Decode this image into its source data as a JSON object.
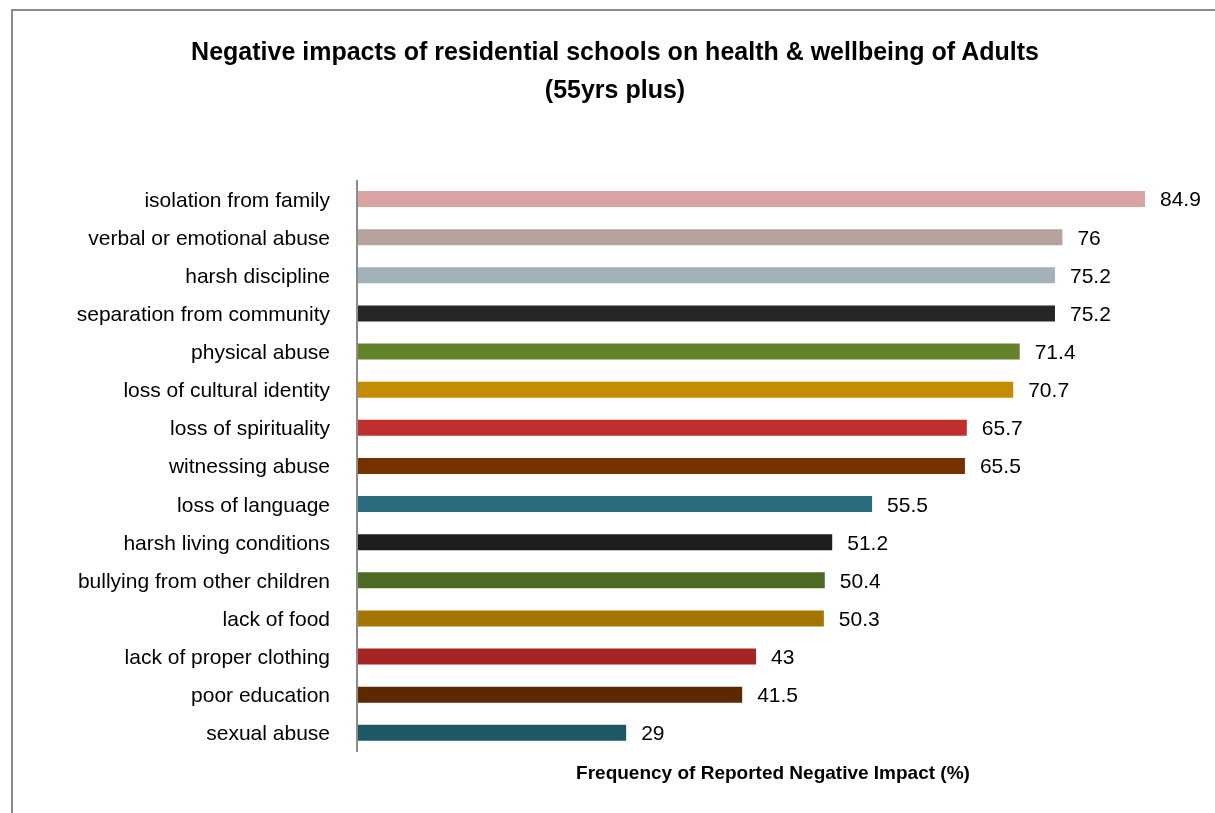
{
  "chart_data": {
    "type": "bar",
    "orientation": "horizontal",
    "title": "Negative impacts of residential schools on health & wellbeing of Adults (55yrs plus)",
    "xlabel": "Frequency of Reported Negative Impact (%)",
    "categories": [
      "isolation from family",
      "verbal or emotional abuse",
      "harsh discipline",
      "separation from community",
      "physical abuse",
      "loss of cultural identity",
      "loss of spirituality",
      "witnessing abuse",
      "loss of language",
      "harsh living conditions",
      "bullying from other children",
      "lack of food",
      "lack of proper clothing",
      "poor education",
      "sexual abuse"
    ],
    "values": [
      84.9,
      76,
      75.2,
      75.2,
      71.4,
      70.7,
      65.7,
      65.5,
      55.5,
      51.2,
      50.4,
      50.3,
      43,
      41.5,
      29
    ],
    "colors": [
      "#d9a3a3",
      "#b4a39f",
      "#a3b1b9",
      "#262626",
      "#63812a",
      "#c68c00",
      "#c12e2e",
      "#733200",
      "#2a6c7b",
      "#1e1e1e",
      "#4f6a22",
      "#a47500",
      "#a52424",
      "#5c2800",
      "#205966"
    ],
    "data_labels": true
  }
}
